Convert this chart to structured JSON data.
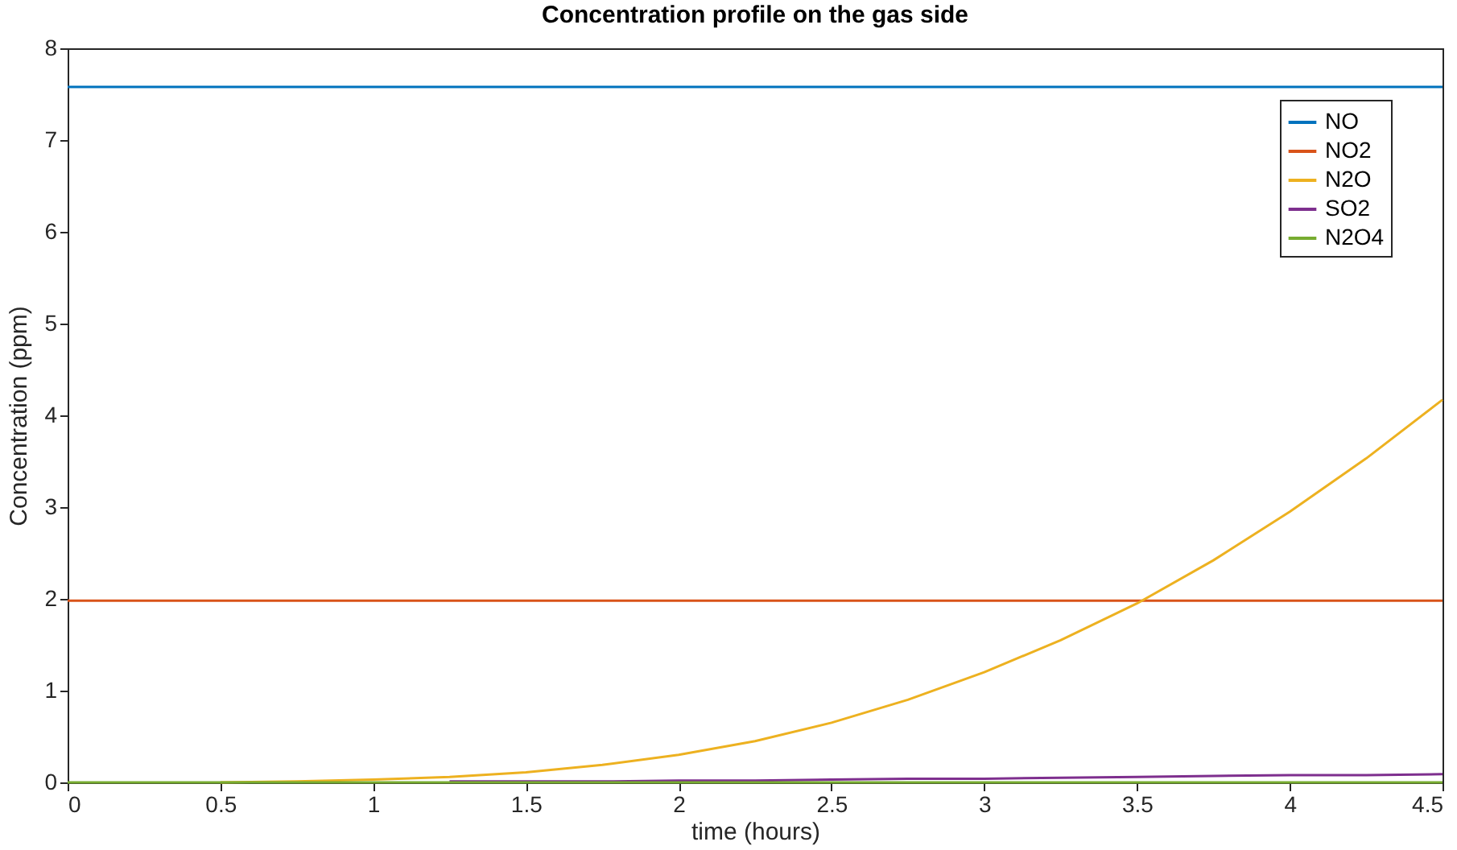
{
  "chart_data": {
    "type": "line",
    "title": "Concentration profile on the gas side",
    "xlabel": "time (hours)",
    "ylabel": "Concentration (ppm)",
    "x": [
      0,
      0.25,
      0.5,
      0.75,
      1,
      1.25,
      1.5,
      1.75,
      2,
      2.25,
      2.5,
      2.75,
      3,
      3.25,
      3.5,
      3.75,
      4,
      4.25,
      4.5
    ],
    "series": [
      {
        "name": "NO",
        "color": "#0072bd",
        "values": [
          7.58,
          7.58,
          7.58,
          7.58,
          7.58,
          7.58,
          7.58,
          7.58,
          7.58,
          7.58,
          7.58,
          7.58,
          7.58,
          7.58,
          7.58,
          7.58,
          7.58,
          7.58,
          7.58
        ]
      },
      {
        "name": "NO2",
        "color": "#d95319",
        "values": [
          1.98,
          1.98,
          1.98,
          1.98,
          1.98,
          1.98,
          1.98,
          1.98,
          1.98,
          1.98,
          1.98,
          1.98,
          1.98,
          1.98,
          1.98,
          1.98,
          1.98,
          1.98,
          1.98
        ]
      },
      {
        "name": "N2O",
        "color": "#edb120",
        "values": [
          null,
          null,
          0,
          0.01,
          0.03,
          0.06,
          0.11,
          0.19,
          0.3,
          0.45,
          0.65,
          0.9,
          1.2,
          1.55,
          1.95,
          2.42,
          2.95,
          3.53,
          4.17
        ]
      },
      {
        "name": "SO2",
        "color": "#7e2f8e",
        "values": [
          null,
          null,
          null,
          null,
          null,
          0.01,
          0.01,
          0.01,
          0.02,
          0.02,
          0.03,
          0.04,
          0.04,
          0.05,
          0.06,
          0.07,
          0.08,
          0.08,
          0.09
        ]
      },
      {
        "name": "N2O4",
        "color": "#77ac30",
        "values": [
          0,
          0,
          0,
          0,
          0,
          0,
          0,
          0,
          0,
          0,
          0,
          0,
          0,
          0,
          0,
          0,
          0,
          0,
          0
        ]
      }
    ],
    "xlim": [
      0,
      4.5
    ],
    "xticks": [
      0,
      0.5,
      1,
      1.5,
      2,
      2.5,
      3,
      3.5,
      4,
      4.5
    ],
    "ylim": [
      0,
      8
    ],
    "yticks": [
      0,
      1,
      2,
      3,
      4,
      5,
      6,
      7,
      8
    ],
    "grid": false,
    "legend": "top right",
    "marker": "none",
    "line_style": "solid"
  }
}
